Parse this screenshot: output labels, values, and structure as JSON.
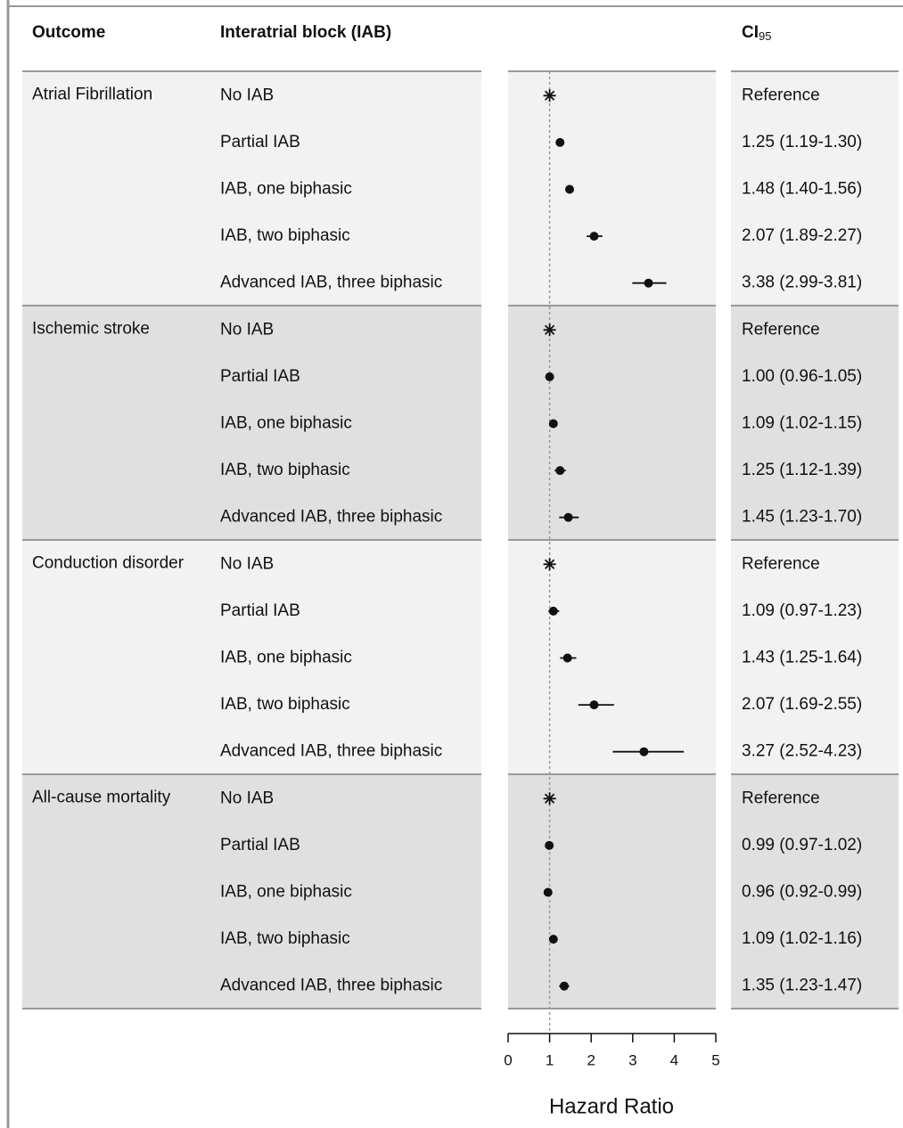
{
  "chart_data": {
    "type": "forest",
    "outcome_header": "Outcome",
    "row_header": "Interatrial block (IAB)",
    "ci_header": "CI",
    "ci_header_sub": "95",
    "xlabel": "Hazard Ratio",
    "xlim": [
      0,
      5
    ],
    "xticks": [
      0,
      1,
      2,
      3,
      4,
      5
    ],
    "reference_line": 1,
    "rows": [
      "No IAB",
      "Partial IAB",
      "IAB, one biphasic",
      "IAB, two biphasic",
      "Advanced IAB, three biphasic"
    ],
    "groups": [
      {
        "name": "Atrial Fibrillation",
        "color": "#f2f2f2",
        "values": [
          1,
          1.25,
          1.48,
          2.07,
          3.38
        ],
        "lower": [
          null,
          1.19,
          1.4,
          1.89,
          2.99
        ],
        "upper": [
          null,
          1.3,
          1.56,
          2.27,
          3.81
        ],
        "value_labels": [
          "Reference",
          "1.25 (1.19-1.30)",
          "1.48 (1.40-1.56)",
          "2.07 (1.89-2.27)",
          "3.38 (2.99-3.81)"
        ]
      },
      {
        "name": "Ischemic stroke",
        "color": "#e0e0e0",
        "values": [
          1,
          1.0,
          1.09,
          1.25,
          1.45
        ],
        "lower": [
          null,
          0.96,
          1.02,
          1.12,
          1.23
        ],
        "upper": [
          null,
          1.05,
          1.15,
          1.39,
          1.7
        ],
        "value_labels": [
          "Reference",
          "1.00 (0.96-1.05)",
          "1.09 (1.02-1.15)",
          "1.25 (1.12-1.39)",
          "1.45 (1.23-1.70)"
        ]
      },
      {
        "name": "Conduction disorder",
        "color": "#f2f2f2",
        "values": [
          1,
          1.09,
          1.43,
          2.07,
          3.27
        ],
        "lower": [
          null,
          0.97,
          1.25,
          1.69,
          2.52
        ],
        "upper": [
          null,
          1.23,
          1.64,
          2.55,
          4.23
        ],
        "value_labels": [
          "Reference",
          "1.09 (0.97-1.23)",
          "1.43 (1.25-1.64)",
          "2.07 (1.69-2.55)",
          "3.27 (2.52-4.23)"
        ]
      },
      {
        "name": "All-cause mortality",
        "color": "#e0e0e0",
        "values": [
          1,
          0.99,
          0.96,
          1.09,
          1.35
        ],
        "lower": [
          null,
          0.97,
          0.92,
          1.02,
          1.23
        ],
        "upper": [
          null,
          1.02,
          0.99,
          1.16,
          1.47
        ],
        "value_labels": [
          "Reference",
          "0.99 (0.97-1.02)",
          "0.96 (0.92-0.99)",
          "1.09 (1.02-1.16)",
          "1.35 (1.23-1.47)"
        ]
      }
    ]
  }
}
